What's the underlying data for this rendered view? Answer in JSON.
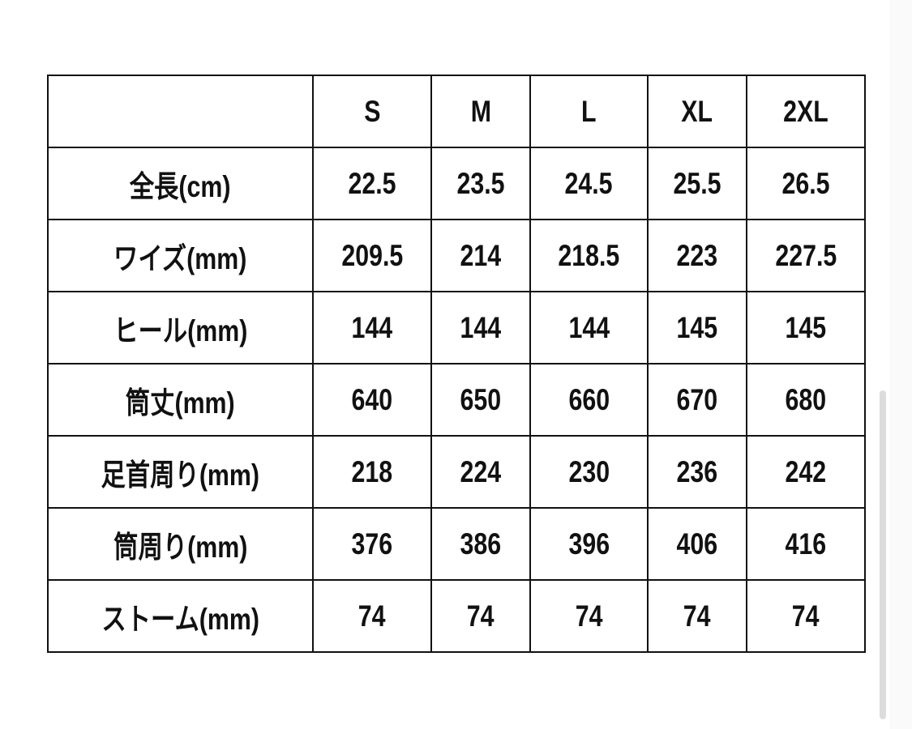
{
  "table": {
    "headers": [
      "",
      "S",
      "M",
      "L",
      "XL",
      "2XL"
    ],
    "rows": [
      [
        "全長(cm)",
        "22.5",
        "23.5",
        "24.5",
        "25.5",
        "26.5"
      ],
      [
        "ワイズ(mm)",
        "209.5",
        "214",
        "218.5",
        "223",
        "227.5"
      ],
      [
        "ヒール(mm)",
        "144",
        "144",
        "144",
        "145",
        "145"
      ],
      [
        "筒丈(mm)",
        "640",
        "650",
        "660",
        "670",
        "680"
      ],
      [
        "足首周り(mm)",
        "218",
        "224",
        "230",
        "236",
        "242"
      ],
      [
        "筒周り(mm)",
        "376",
        "386",
        "396",
        "406",
        "416"
      ],
      [
        "ストーム(mm)",
        "74",
        "74",
        "74",
        "74",
        "74"
      ]
    ]
  }
}
